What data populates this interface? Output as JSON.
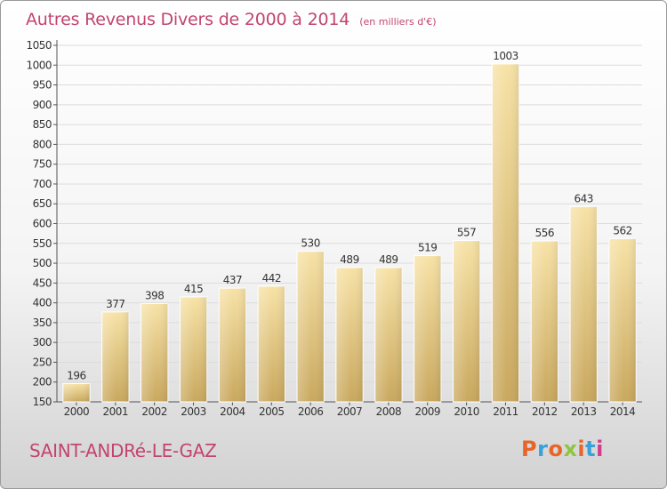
{
  "chart_data": {
    "type": "bar",
    "title": "Autres Revenus Divers de 2000 à 2014",
    "subtitle": "(en milliers d'€)",
    "categories": [
      "2000",
      "2001",
      "2002",
      "2003",
      "2004",
      "2005",
      "2006",
      "2007",
      "2008",
      "2009",
      "2010",
      "2011",
      "2012",
      "2013",
      "2014"
    ],
    "values": [
      196,
      377,
      398,
      415,
      437,
      442,
      530,
      489,
      489,
      519,
      557,
      1003,
      556,
      643,
      562
    ],
    "ylim": [
      150,
      1050
    ],
    "yticks": [
      150,
      200,
      250,
      300,
      350,
      400,
      450,
      500,
      550,
      600,
      650,
      700,
      750,
      800,
      850,
      900,
      950,
      1000,
      1050
    ],
    "grid": true,
    "bar_color": "#e8c878",
    "xlabel": "",
    "ylabel": ""
  },
  "footer": {
    "town": "SAINT-ANDRé-LE-GAZ",
    "brand": "Proxiti"
  },
  "colors": {
    "title": "#c2456e",
    "brand_letters": [
      "#e8652a",
      "#3aa0d8",
      "#e8652a",
      "#8cc63f",
      "#e8652a",
      "#3aa0d8",
      "#d23c8c"
    ]
  }
}
